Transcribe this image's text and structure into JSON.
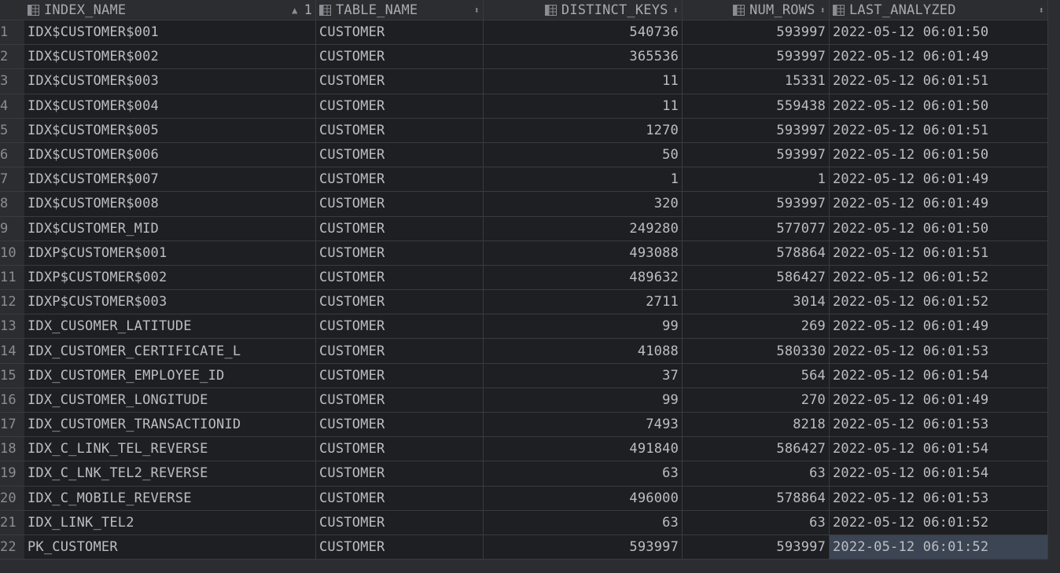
{
  "columns": {
    "index_name": "INDEX_NAME",
    "table_name": "TABLE_NAME",
    "distinct_keys": "DISTINCT_KEYS",
    "num_rows": "NUM_ROWS",
    "last_analyzed": "LAST_ANALYZED",
    "sort_order_index": "1"
  },
  "icons": {
    "column": "table-column-icon",
    "sort_asc": "sort-ascending-icon",
    "sort": "sort-toggle-icon"
  },
  "rows": [
    {
      "n": "1",
      "index_name": "IDX$CUSTOMER$001",
      "table_name": "CUSTOMER",
      "distinct_keys": "540736",
      "num_rows": "593997",
      "last_analyzed": "2022-05-12 06:01:50"
    },
    {
      "n": "2",
      "index_name": "IDX$CUSTOMER$002",
      "table_name": "CUSTOMER",
      "distinct_keys": "365536",
      "num_rows": "593997",
      "last_analyzed": "2022-05-12 06:01:49"
    },
    {
      "n": "3",
      "index_name": "IDX$CUSTOMER$003",
      "table_name": "CUSTOMER",
      "distinct_keys": "11",
      "num_rows": "15331",
      "last_analyzed": "2022-05-12 06:01:51"
    },
    {
      "n": "4",
      "index_name": "IDX$CUSTOMER$004",
      "table_name": "CUSTOMER",
      "distinct_keys": "11",
      "num_rows": "559438",
      "last_analyzed": "2022-05-12 06:01:50"
    },
    {
      "n": "5",
      "index_name": "IDX$CUSTOMER$005",
      "table_name": "CUSTOMER",
      "distinct_keys": "1270",
      "num_rows": "593997",
      "last_analyzed": "2022-05-12 06:01:51"
    },
    {
      "n": "6",
      "index_name": "IDX$CUSTOMER$006",
      "table_name": "CUSTOMER",
      "distinct_keys": "50",
      "num_rows": "593997",
      "last_analyzed": "2022-05-12 06:01:50"
    },
    {
      "n": "7",
      "index_name": "IDX$CUSTOMER$007",
      "table_name": "CUSTOMER",
      "distinct_keys": "1",
      "num_rows": "1",
      "last_analyzed": "2022-05-12 06:01:49"
    },
    {
      "n": "8",
      "index_name": "IDX$CUSTOMER$008",
      "table_name": "CUSTOMER",
      "distinct_keys": "320",
      "num_rows": "593997",
      "last_analyzed": "2022-05-12 06:01:49"
    },
    {
      "n": "9",
      "index_name": "IDX$CUSTOMER_MID",
      "table_name": "CUSTOMER",
      "distinct_keys": "249280",
      "num_rows": "577077",
      "last_analyzed": "2022-05-12 06:01:50"
    },
    {
      "n": "10",
      "index_name": "IDXP$CUSTOMER$001",
      "table_name": "CUSTOMER",
      "distinct_keys": "493088",
      "num_rows": "578864",
      "last_analyzed": "2022-05-12 06:01:51"
    },
    {
      "n": "11",
      "index_name": "IDXP$CUSTOMER$002",
      "table_name": "CUSTOMER",
      "distinct_keys": "489632",
      "num_rows": "586427",
      "last_analyzed": "2022-05-12 06:01:52"
    },
    {
      "n": "12",
      "index_name": "IDXP$CUSTOMER$003",
      "table_name": "CUSTOMER",
      "distinct_keys": "2711",
      "num_rows": "3014",
      "last_analyzed": "2022-05-12 06:01:52"
    },
    {
      "n": "13",
      "index_name": "IDX_CUSOMER_LATITUDE",
      "table_name": "CUSTOMER",
      "distinct_keys": "99",
      "num_rows": "269",
      "last_analyzed": "2022-05-12 06:01:49"
    },
    {
      "n": "14",
      "index_name": "IDX_CUSTOMER_CERTIFICATE_L",
      "table_name": "CUSTOMER",
      "distinct_keys": "41088",
      "num_rows": "580330",
      "last_analyzed": "2022-05-12 06:01:53"
    },
    {
      "n": "15",
      "index_name": "IDX_CUSTOMER_EMPLOYEE_ID",
      "table_name": "CUSTOMER",
      "distinct_keys": "37",
      "num_rows": "564",
      "last_analyzed": "2022-05-12 06:01:54"
    },
    {
      "n": "16",
      "index_name": "IDX_CUSTOMER_LONGITUDE",
      "table_name": "CUSTOMER",
      "distinct_keys": "99",
      "num_rows": "270",
      "last_analyzed": "2022-05-12 06:01:49"
    },
    {
      "n": "17",
      "index_name": "IDX_CUSTOMER_TRANSACTIONID",
      "table_name": "CUSTOMER",
      "distinct_keys": "7493",
      "num_rows": "8218",
      "last_analyzed": "2022-05-12 06:01:53"
    },
    {
      "n": "18",
      "index_name": "IDX_C_LINK_TEL_REVERSE",
      "table_name": "CUSTOMER",
      "distinct_keys": "491840",
      "num_rows": "586427",
      "last_analyzed": "2022-05-12 06:01:54"
    },
    {
      "n": "19",
      "index_name": "IDX_C_LNK_TEL2_REVERSE",
      "table_name": "CUSTOMER",
      "distinct_keys": "63",
      "num_rows": "63",
      "last_analyzed": "2022-05-12 06:01:54"
    },
    {
      "n": "20",
      "index_name": "IDX_C_MOBILE_REVERSE",
      "table_name": "CUSTOMER",
      "distinct_keys": "496000",
      "num_rows": "578864",
      "last_analyzed": "2022-05-12 06:01:53"
    },
    {
      "n": "21",
      "index_name": "IDX_LINK_TEL2",
      "table_name": "CUSTOMER",
      "distinct_keys": "63",
      "num_rows": "63",
      "last_analyzed": "2022-05-12 06:01:52"
    },
    {
      "n": "22",
      "index_name": "PK_CUSTOMER",
      "table_name": "CUSTOMER",
      "distinct_keys": "593997",
      "num_rows": "593997",
      "last_analyzed": "2022-05-12 06:01:52",
      "selected": true
    }
  ]
}
